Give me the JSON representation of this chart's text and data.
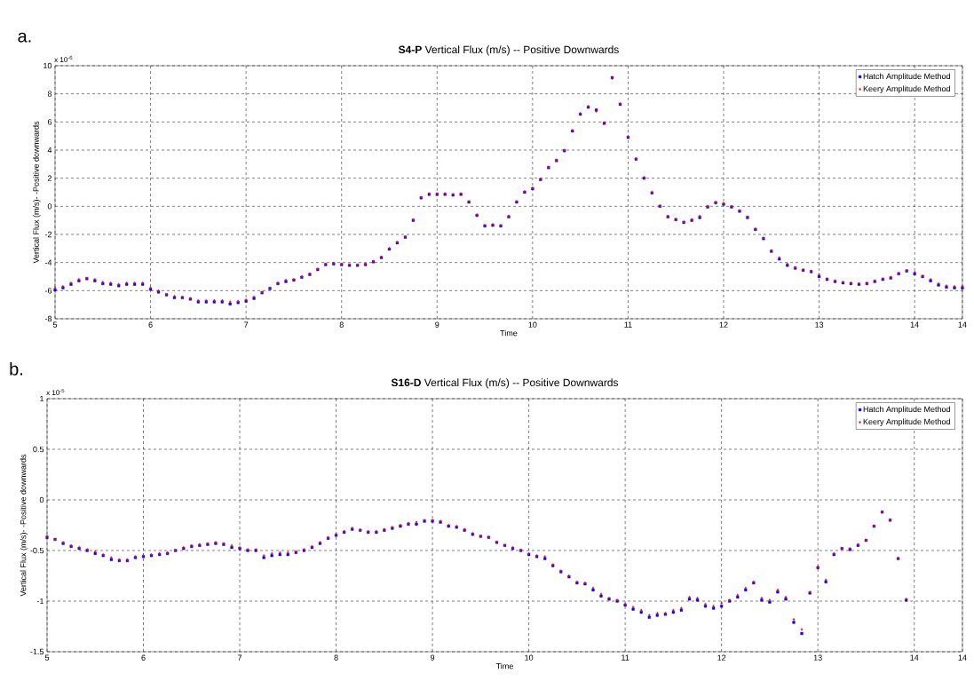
{
  "chart_data": [
    {
      "type": "scatter",
      "title": "**S4-P**   Vertical Flux (m/s) -- Positive Downwards",
      "xlabel": "Time",
      "ylabel": "Vertical Flux (m/s)- -Positive downwards",
      "annotations": [
        "a.",
        "x 10$^{-6}$"
      ],
      "xlim": [
        5,
        14.5
      ],
      "ylim": [
        -8,
        10
      ],
      "xticks": [
        5,
        6,
        7,
        8,
        9,
        10,
        11,
        12,
        13,
        14,
        {
          "value": 14.5,
          "label": "14"
        }
      ],
      "yticks": [
        -8,
        -6,
        -4,
        -2,
        0,
        2,
        4,
        6,
        8,
        10
      ],
      "grid": true,
      "legend": "top right",
      "x": [
        5,
        5.083,
        5.167,
        5.25,
        5.333,
        5.417,
        5.5,
        5.583,
        5.667,
        5.75,
        5.833,
        5.917,
        6,
        6.083,
        6.167,
        6.25,
        6.333,
        6.417,
        6.5,
        6.583,
        6.667,
        6.75,
        6.833,
        6.917,
        7,
        7.083,
        7.167,
        7.25,
        7.333,
        7.417,
        7.5,
        7.583,
        7.667,
        7.75,
        7.833,
        7.917,
        8,
        8.083,
        8.167,
        8.25,
        8.333,
        8.417,
        8.5,
        8.583,
        8.667,
        8.75,
        8.833,
        8.917,
        9,
        9.083,
        9.167,
        9.25,
        9.333,
        9.417,
        9.5,
        9.583,
        9.667,
        9.75,
        9.833,
        9.917,
        10,
        10.083,
        10.167,
        10.25,
        10.333,
        10.417,
        10.5,
        10.583,
        10.667,
        10.75,
        10.833,
        10.917,
        11,
        11.083,
        11.167,
        11.25,
        11.333,
        11.417,
        11.5,
        11.583,
        11.667,
        11.75,
        11.833,
        11.917,
        12,
        12.083,
        12.167,
        12.25,
        12.333,
        12.417,
        12.5,
        12.583,
        12.667,
        12.75,
        12.833,
        12.917,
        13,
        13.083,
        13.167,
        13.25,
        13.333,
        13.417,
        13.5,
        13.583,
        13.667,
        13.75,
        13.833,
        13.917,
        14,
        14.083,
        14.167,
        14.25,
        14.333,
        14.417,
        14.5
      ],
      "series": [
        {
          "name": "Hatch Amplitude Method",
          "color": "#0000ff",
          "marker": "square",
          "values": [
            -5.95,
            -5.8,
            -5.55,
            -5.3,
            -5.15,
            -5.3,
            -5.5,
            -5.55,
            -5.65,
            -5.55,
            -5.55,
            -5.55,
            -5.9,
            -6.1,
            -6.3,
            -6.5,
            -6.5,
            -6.6,
            -6.8,
            -6.8,
            -6.8,
            -6.8,
            -6.95,
            -6.85,
            -6.75,
            -6.55,
            -6.15,
            -5.85,
            -5.5,
            -5.35,
            -5.25,
            -5.05,
            -4.85,
            -4.5,
            -4.15,
            -4.1,
            -4.15,
            -4.2,
            -4.2,
            -4.15,
            -3.95,
            -3.65,
            -3.05,
            -2.6,
            -2.2,
            -1.0,
            0.6,
            0.85,
            0.85,
            0.85,
            0.8,
            0.85,
            0.3,
            -0.65,
            -1.4,
            -1.35,
            -1.4,
            -0.75,
            0.3,
            1.0,
            1.25,
            1.9,
            2.75,
            3.25,
            3.95,
            5.35,
            6.55,
            7.05,
            6.85,
            5.9,
            9.15,
            7.25,
            4.9,
            3.35,
            2.0,
            0.95,
            0.0,
            -0.75,
            -0.95,
            -1.15,
            -1.0,
            -0.8,
            -0.05,
            0.25,
            0.15,
            -0.05,
            -0.35,
            -0.8,
            -1.65,
            -2.3,
            -3.2,
            -3.75,
            -4.2,
            -4.4,
            -4.55,
            -4.65,
            -5.0,
            -5.2,
            -5.35,
            -5.45,
            -5.5,
            -5.55,
            -5.5,
            -5.35,
            -5.2,
            -5.1,
            -4.8,
            -4.6,
            -4.8,
            -5.0,
            -5.3,
            -5.6,
            -5.75,
            -5.8,
            -5.8
          ]
        },
        {
          "name": "Keery Amplitude Method",
          "color": "#ff0000",
          "marker": "diamond",
          "values": [
            -5.8,
            -5.7,
            -5.45,
            -5.2,
            -5.1,
            -5.2,
            -5.4,
            -5.45,
            -5.55,
            -5.45,
            -5.45,
            -5.45,
            -5.8,
            -6.0,
            -6.25,
            -6.4,
            -6.45,
            -6.55,
            -6.7,
            -6.7,
            -6.7,
            -6.7,
            -6.8,
            -6.75,
            -6.65,
            -6.45,
            -6.1,
            -5.8,
            -5.45,
            -5.25,
            -5.2,
            -5.0,
            -4.8,
            -4.45,
            -4.1,
            -4.05,
            -4.1,
            -4.15,
            -4.15,
            -4.1,
            -3.9,
            -3.6,
            -3.0,
            -2.55,
            -2.15,
            -0.95,
            0.65,
            0.9,
            0.9,
            0.9,
            0.85,
            0.9,
            0.35,
            -0.6,
            -1.35,
            -1.3,
            -1.35,
            -0.7,
            0.35,
            1.05,
            1.3,
            1.95,
            2.8,
            3.3,
            4.0,
            5.4,
            6.6,
            7.1,
            6.75,
            5.95,
            9.1,
            7.3,
            4.95,
            3.4,
            2.05,
            1.0,
            0.05,
            -0.7,
            -0.9,
            -1.1,
            -0.95,
            -0.7,
            0.0,
            0.3,
            0.2,
            0.0,
            -0.3,
            -0.75,
            -1.6,
            -2.25,
            -3.15,
            -3.65,
            -4.1,
            -4.35,
            -4.5,
            -4.6,
            -4.85,
            -5.15,
            -5.3,
            -5.4,
            -5.45,
            -5.5,
            -5.45,
            -5.3,
            -5.15,
            -5.05,
            -4.75,
            -4.55,
            -4.7,
            -4.95,
            -5.2,
            -5.5,
            -5.65,
            -5.7,
            -5.7
          ]
        }
      ]
    },
    {
      "type": "scatter",
      "title": "**S16-D**   Vertical Flux (m/s) -- Positive Downwards",
      "xlabel": "Time",
      "ylabel": "Vertical Flux (m/s)- -Positive downwards",
      "annotations": [
        "b.",
        "x 10$^{-5}$"
      ],
      "xlim": [
        5,
        14.5
      ],
      "ylim": [
        -1.5,
        1
      ],
      "xticks": [
        5,
        6,
        7,
        8,
        9,
        10,
        11,
        12,
        13,
        14,
        {
          "value": 14.5,
          "label": "14"
        }
      ],
      "yticks": [
        -1.5,
        -1,
        -0.5,
        0,
        0.5,
        1
      ],
      "grid": true,
      "legend": "top right",
      "x": [
        5,
        5.083,
        5.167,
        5.25,
        5.333,
        5.417,
        5.5,
        5.583,
        5.667,
        5.75,
        5.833,
        5.917,
        6,
        6.083,
        6.167,
        6.25,
        6.333,
        6.417,
        6.5,
        6.583,
        6.667,
        6.75,
        6.833,
        6.917,
        7,
        7.083,
        7.167,
        7.25,
        7.333,
        7.417,
        7.5,
        7.583,
        7.667,
        7.75,
        7.833,
        7.917,
        8,
        8.083,
        8.167,
        8.25,
        8.333,
        8.417,
        8.5,
        8.583,
        8.667,
        8.75,
        8.833,
        8.917,
        9,
        9.083,
        9.167,
        9.25,
        9.333,
        9.417,
        9.5,
        9.583,
        9.667,
        9.75,
        9.833,
        9.917,
        10,
        10.083,
        10.167,
        10.25,
        10.333,
        10.417,
        10.5,
        10.583,
        10.667,
        10.75,
        10.833,
        10.917,
        11,
        11.083,
        11.167,
        11.25,
        11.333,
        11.417,
        11.5,
        11.583,
        11.667,
        11.75,
        11.833,
        11.917,
        12,
        12.083,
        12.167,
        12.25,
        12.333,
        12.417,
        12.5,
        12.583,
        12.667,
        12.75,
        12.833,
        12.917,
        13,
        13.083,
        13.167,
        13.25,
        13.333,
        13.417,
        13.5,
        13.583,
        13.667,
        13.75,
        13.833,
        13.917
      ],
      "series": [
        {
          "name": "Hatch Amplitude Method",
          "color": "#0000ff",
          "marker": "square",
          "values": [
            -0.37,
            -0.39,
            -0.43,
            -0.46,
            -0.48,
            -0.5,
            -0.53,
            -0.55,
            -0.59,
            -0.6,
            -0.6,
            -0.57,
            -0.56,
            -0.55,
            -0.54,
            -0.53,
            -0.5,
            -0.48,
            -0.46,
            -0.45,
            -0.44,
            -0.43,
            -0.44,
            -0.47,
            -0.48,
            -0.5,
            -0.5,
            -0.57,
            -0.55,
            -0.54,
            -0.54,
            -0.52,
            -0.5,
            -0.47,
            -0.43,
            -0.38,
            -0.35,
            -0.32,
            -0.29,
            -0.3,
            -0.32,
            -0.32,
            -0.3,
            -0.28,
            -0.26,
            -0.24,
            -0.24,
            -0.21,
            -0.21,
            -0.22,
            -0.26,
            -0.27,
            -0.3,
            -0.34,
            -0.36,
            -0.37,
            -0.42,
            -0.45,
            -0.48,
            -0.5,
            -0.54,
            -0.56,
            -0.58,
            -0.65,
            -0.71,
            -0.76,
            -0.82,
            -0.83,
            -0.89,
            -0.95,
            -0.98,
            -1.0,
            -1.04,
            -1.08,
            -1.11,
            -1.16,
            -1.14,
            -1.13,
            -1.11,
            -1.09,
            -0.98,
            -0.99,
            -1.05,
            -1.07,
            -1.05,
            -1.0,
            -0.96,
            -0.89,
            -0.82,
            -0.99,
            -1.01,
            -0.91,
            -0.98,
            -1.21,
            -1.32,
            -0.92,
            -0.67,
            -0.81,
            -0.54,
            -0.48,
            -0.49,
            -0.45,
            -0.4,
            -0.26,
            -0.12,
            -0.2,
            -0.58,
            -0.99
          ]
        },
        {
          "name": "Keery Amplitude Method",
          "color": "#ff0000",
          "marker": "diamond",
          "values": [
            -0.36,
            -0.39,
            -0.42,
            -0.45,
            -0.47,
            -0.49,
            -0.51,
            -0.54,
            -0.57,
            -0.59,
            -0.59,
            -0.56,
            -0.55,
            -0.54,
            -0.53,
            -0.52,
            -0.5,
            -0.47,
            -0.45,
            -0.44,
            -0.43,
            -0.42,
            -0.43,
            -0.45,
            -0.47,
            -0.49,
            -0.49,
            -0.55,
            -0.53,
            -0.52,
            -0.52,
            -0.51,
            -0.49,
            -0.46,
            -0.42,
            -0.37,
            -0.34,
            -0.31,
            -0.28,
            -0.3,
            -0.31,
            -0.31,
            -0.29,
            -0.27,
            -0.25,
            -0.23,
            -0.22,
            -0.2,
            -0.2,
            -0.21,
            -0.25,
            -0.26,
            -0.29,
            -0.33,
            -0.36,
            -0.37,
            -0.42,
            -0.45,
            -0.47,
            -0.5,
            -0.53,
            -0.55,
            -0.56,
            -0.64,
            -0.7,
            -0.75,
            -0.81,
            -0.82,
            -0.87,
            -0.93,
            -0.97,
            -0.99,
            -1.03,
            -1.06,
            -1.09,
            -1.14,
            -1.12,
            -1.12,
            -1.09,
            -1.07,
            -0.96,
            -0.97,
            -1.03,
            -1.05,
            -1.02,
            -0.99,
            -0.94,
            -0.87,
            -0.81,
            -0.97,
            -0.99,
            -0.89,
            -0.96,
            -1.18,
            -1.28,
            -0.91,
            -0.66,
            -0.79,
            -0.53,
            -0.48,
            -0.48,
            -0.44,
            -0.4,
            -0.26,
            -0.12,
            -0.2,
            -0.58,
            -0.98
          ]
        }
      ]
    }
  ]
}
